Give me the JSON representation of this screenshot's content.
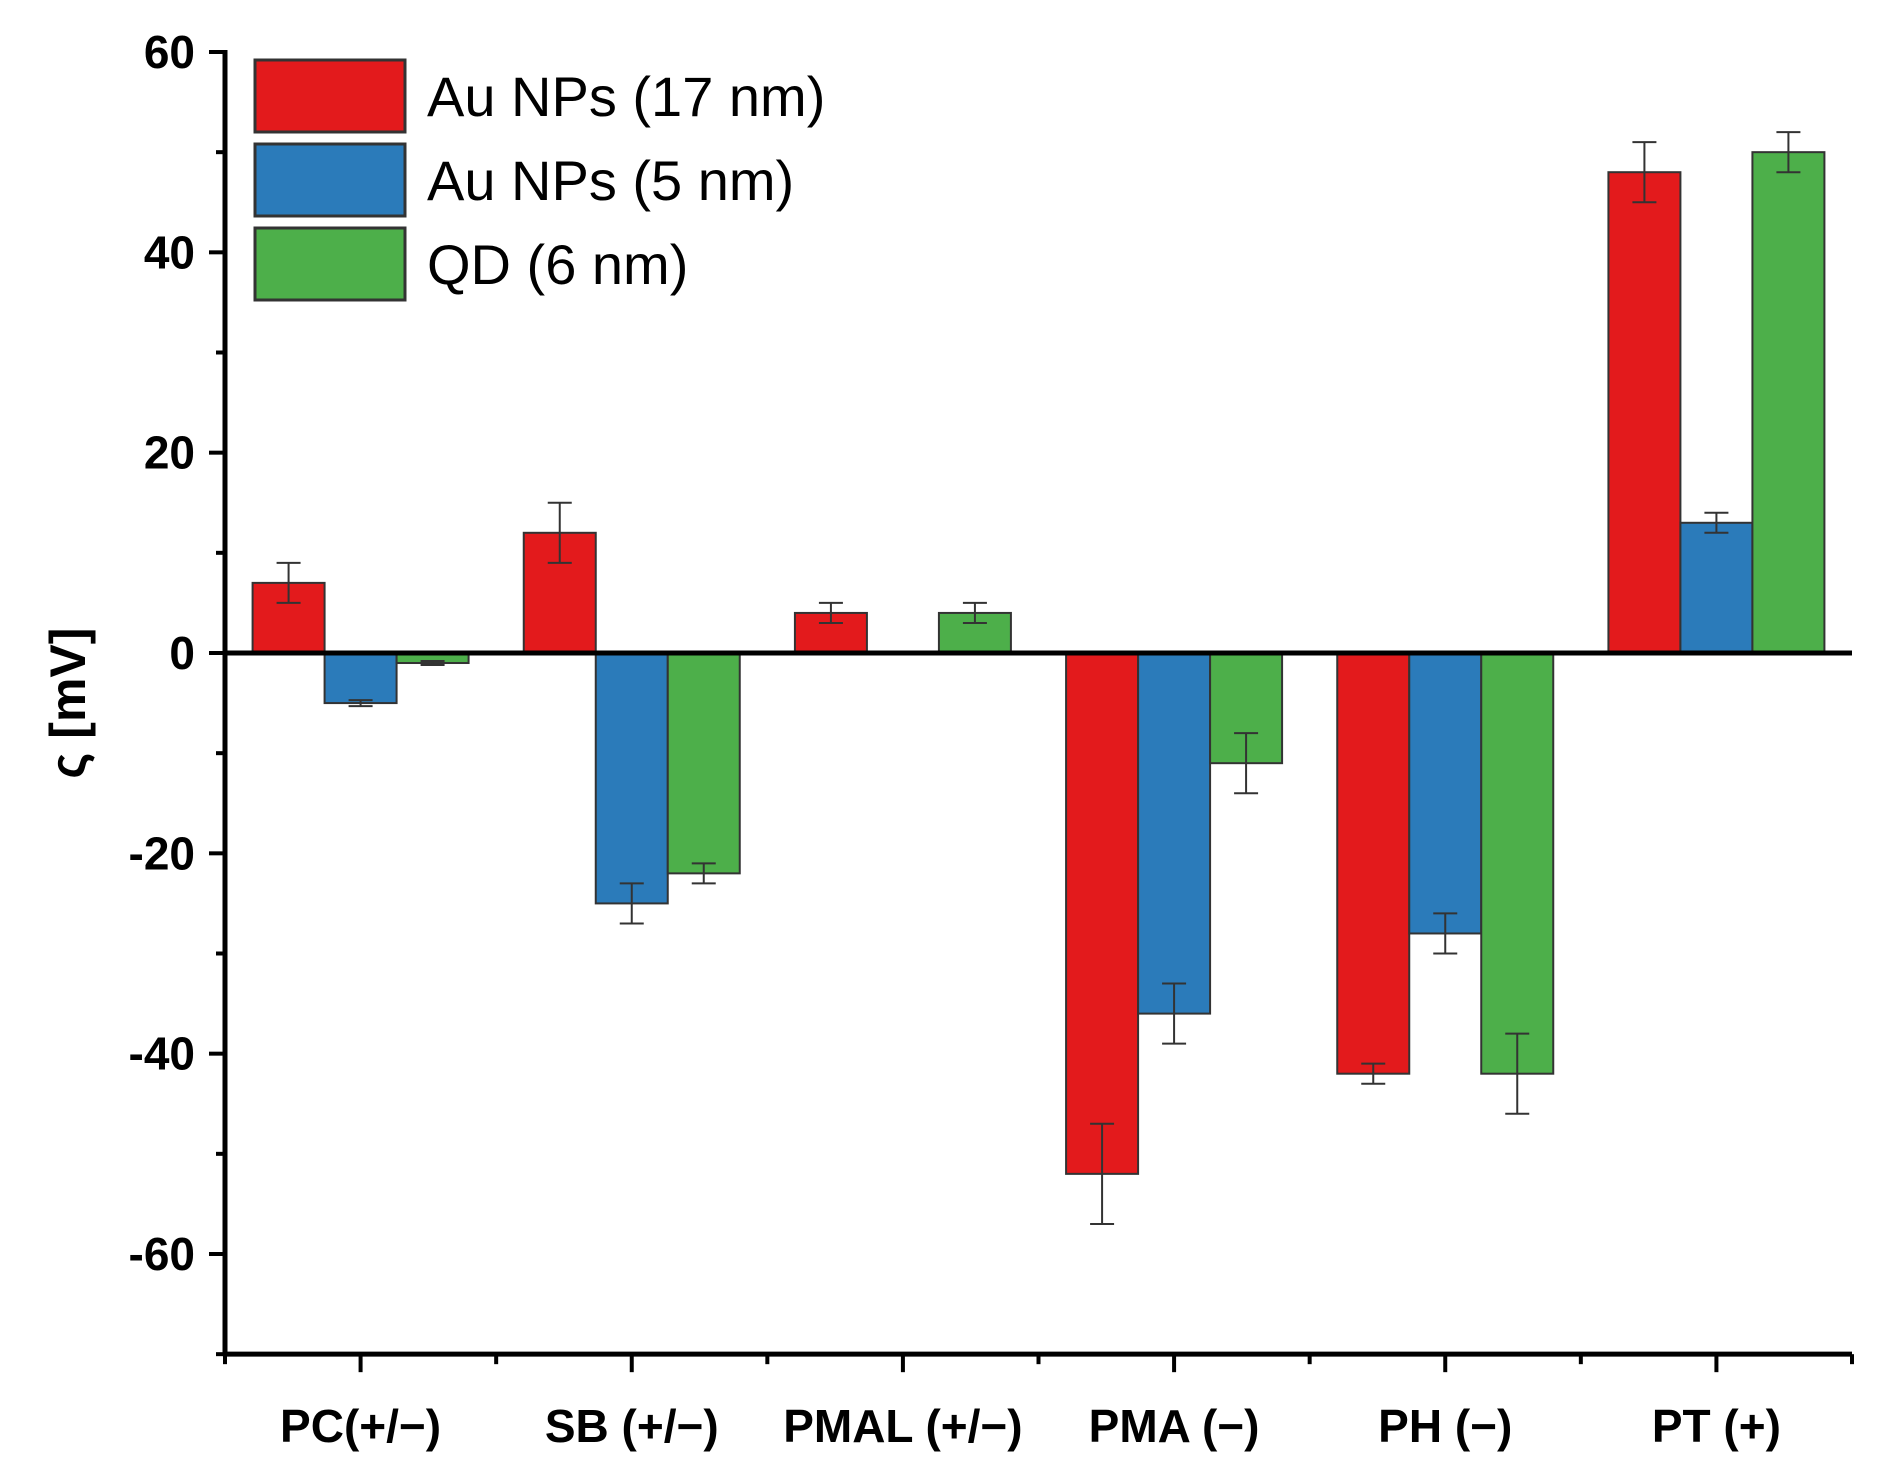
{
  "chart_data": {
    "type": "bar",
    "title": "",
    "xlabel": "",
    "ylabel": "ς [mV]",
    "ylim": [
      -70,
      60
    ],
    "yticks": [
      60,
      40,
      20,
      0,
      -20,
      -40,
      -60
    ],
    "ytick_labels": [
      "60",
      "40",
      "20",
      "0",
      "-20",
      "-40",
      "-60"
    ],
    "categories": [
      "PC(+/−)",
      "SB (+/−)",
      "PMAL (+/−)",
      "PMA (−)",
      "PH (−)",
      "PT (+)"
    ],
    "legend_position": "top-left",
    "series": [
      {
        "name": "Au NPs (17 nm)",
        "color": "#e31a1c",
        "values": [
          7,
          12,
          4,
          -52,
          -42,
          48
        ],
        "errors": [
          2,
          3,
          1,
          5,
          1,
          3
        ]
      },
      {
        "name": "Au NPs (5 nm)",
        "color": "#2b7bba",
        "values": [
          -5,
          -25,
          null,
          -36,
          -28,
          13
        ],
        "errors": [
          0.3,
          2,
          null,
          3,
          2,
          1
        ]
      },
      {
        "name": "QD (6 nm)",
        "color": "#4daf4a",
        "values": [
          -1,
          -22,
          4,
          -11,
          -42,
          50
        ],
        "errors": [
          0.2,
          1,
          1,
          3,
          4,
          2
        ]
      }
    ]
  }
}
